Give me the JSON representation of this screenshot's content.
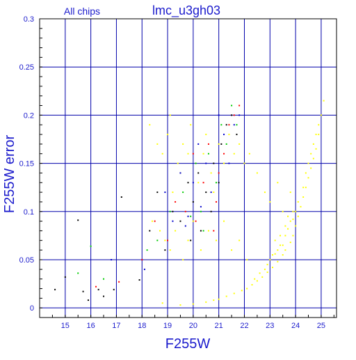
{
  "chart_data": {
    "type": "scatter",
    "title": "lmc_u3gh03",
    "subtitle": "All chips",
    "xlabel": "F255W",
    "ylabel": "F255W error",
    "xlim": [
      14.0,
      25.6
    ],
    "ylim": [
      -0.01,
      0.3
    ],
    "x_ticks": [
      15,
      16,
      17,
      18,
      19,
      20,
      21,
      22,
      23,
      24,
      25
    ],
    "y_ticks": [
      0,
      0.05,
      0.1,
      0.15,
      0.2,
      0.25,
      0.3
    ],
    "y_tick_labels": [
      "0",
      "0.05",
      "0.1",
      "0.15",
      "0.2",
      "0.25",
      "0.3"
    ],
    "grid": true,
    "colors": {
      "axis_text": "#1a1acc",
      "grid": "#0000aa",
      "frame": "#000000"
    },
    "series": [
      {
        "color": "#ffff00",
        "points": [
          [
            18.3,
            0.19
          ],
          [
            18.6,
            0.17
          ],
          [
            18.8,
            0.16
          ],
          [
            19.0,
            0.18
          ],
          [
            19.1,
            0.2
          ],
          [
            19.2,
            0.12
          ],
          [
            19.4,
            0.15
          ],
          [
            19.5,
            0.14
          ],
          [
            19.6,
            0.17
          ],
          [
            19.8,
            0.16
          ],
          [
            19.9,
            0.19
          ],
          [
            20.1,
            0.15
          ],
          [
            20.2,
            0.13
          ],
          [
            20.4,
            0.16
          ],
          [
            20.5,
            0.18
          ],
          [
            20.7,
            0.14
          ],
          [
            20.8,
            0.12
          ],
          [
            21.0,
            0.17
          ],
          [
            21.2,
            0.15
          ],
          [
            21.4,
            0.18
          ],
          [
            21.6,
            0.16
          ],
          [
            21.8,
            0.17
          ],
          [
            22.0,
            0.15
          ],
          [
            22.2,
            0.16
          ],
          [
            22.5,
            0.14
          ],
          [
            22.8,
            0.12
          ],
          [
            23.0,
            0.11
          ],
          [
            23.3,
            0.13
          ],
          [
            23.5,
            0.1
          ],
          [
            23.8,
            0.12
          ],
          [
            18.4,
            0.09
          ],
          [
            18.7,
            0.08
          ],
          [
            18.9,
            0.07
          ],
          [
            19.1,
            0.06
          ],
          [
            19.3,
            0.08
          ],
          [
            19.6,
            0.05
          ],
          [
            19.8,
            0.07
          ],
          [
            20.0,
            0.09
          ],
          [
            20.3,
            0.06
          ],
          [
            20.6,
            0.08
          ],
          [
            20.9,
            0.07
          ],
          [
            21.2,
            0.09
          ],
          [
            21.5,
            0.06
          ],
          [
            21.8,
            0.07
          ],
          [
            22.1,
            0.05
          ],
          [
            18.8,
            0.005
          ],
          [
            19.5,
            0.003
          ],
          [
            20.0,
            0.004
          ],
          [
            20.5,
            0.006
          ],
          [
            20.8,
            0.008
          ],
          [
            21.0,
            0.009
          ],
          [
            21.3,
            0.012
          ],
          [
            21.6,
            0.015
          ],
          [
            21.9,
            0.018
          ],
          [
            22.1,
            0.02
          ],
          [
            22.3,
            0.024
          ],
          [
            22.5,
            0.028
          ],
          [
            22.7,
            0.032
          ],
          [
            22.9,
            0.037
          ],
          [
            23.1,
            0.042
          ],
          [
            23.3,
            0.048
          ],
          [
            23.5,
            0.055
          ],
          [
            23.6,
            0.06
          ],
          [
            23.8,
            0.068
          ],
          [
            23.9,
            0.075
          ],
          [
            24.0,
            0.085
          ],
          [
            24.1,
            0.095
          ],
          [
            24.2,
            0.105
          ],
          [
            24.3,
            0.115
          ],
          [
            24.4,
            0.125
          ],
          [
            24.5,
            0.135
          ],
          [
            24.6,
            0.145
          ],
          [
            24.7,
            0.155
          ],
          [
            24.8,
            0.165
          ],
          [
            24.9,
            0.18
          ],
          [
            25.0,
            0.2
          ],
          [
            25.1,
            0.215
          ],
          [
            22.4,
            0.03
          ],
          [
            22.6,
            0.036
          ],
          [
            22.8,
            0.04
          ],
          [
            23.0,
            0.05
          ],
          [
            23.2,
            0.056
          ],
          [
            23.4,
            0.065
          ],
          [
            23.6,
            0.075
          ],
          [
            23.7,
            0.082
          ],
          [
            23.9,
            0.092
          ],
          [
            24.0,
            0.1
          ],
          [
            24.1,
            0.11
          ],
          [
            24.3,
            0.125
          ],
          [
            24.4,
            0.14
          ],
          [
            24.5,
            0.15
          ],
          [
            24.6,
            0.16
          ],
          [
            24.7,
            0.17
          ],
          [
            24.8,
            0.18
          ],
          [
            24.9,
            0.19
          ],
          [
            23.2,
            0.07
          ],
          [
            23.4,
            0.075
          ],
          [
            23.6,
            0.085
          ],
          [
            23.8,
            0.09
          ],
          [
            23.5,
            0.065
          ],
          [
            23.3,
            0.06
          ],
          [
            23.1,
            0.055
          ],
          [
            22.9,
            0.045
          ],
          [
            23.7,
            0.095
          ],
          [
            23.9,
            0.1
          ]
        ]
      },
      {
        "color": "#000000",
        "points": [
          [
            14.6,
            0.019
          ],
          [
            15.0,
            0.032
          ],
          [
            15.5,
            0.091
          ],
          [
            15.7,
            0.017
          ],
          [
            15.9,
            0.008
          ],
          [
            16.3,
            0.019
          ],
          [
            16.5,
            0.012
          ],
          [
            16.9,
            0.019
          ],
          [
            17.2,
            0.115
          ],
          [
            17.9,
            0.029
          ],
          [
            18.3,
            0.08
          ],
          [
            18.6,
            0.12
          ],
          [
            18.9,
            0.06
          ],
          [
            19.2,
            0.1
          ],
          [
            19.5,
            0.09
          ],
          [
            19.8,
            0.13
          ],
          [
            20.0,
            0.11
          ],
          [
            20.2,
            0.14
          ],
          [
            20.5,
            0.12
          ],
          [
            20.8,
            0.15
          ],
          [
            21.1,
            0.17
          ],
          [
            21.3,
            0.19
          ],
          [
            21.5,
            0.2
          ],
          [
            21.7,
            0.18
          ],
          [
            20.3,
            0.08
          ],
          [
            19.9,
            0.07
          ],
          [
            20.7,
            0.1
          ],
          [
            21.0,
            0.13
          ]
        ]
      },
      {
        "color": "#ff0000",
        "points": [
          [
            16.2,
            0.022
          ],
          [
            17.1,
            0.027
          ],
          [
            18.0,
            0.05
          ],
          [
            18.5,
            0.09
          ],
          [
            19.0,
            0.07
          ],
          [
            19.3,
            0.11
          ],
          [
            19.7,
            0.1
          ],
          [
            20.0,
            0.16
          ],
          [
            20.4,
            0.13
          ],
          [
            20.6,
            0.17
          ],
          [
            20.9,
            0.11
          ],
          [
            21.2,
            0.16
          ],
          [
            21.4,
            0.19
          ],
          [
            21.6,
            0.2
          ],
          [
            21.8,
            0.21
          ],
          [
            20.1,
            0.09
          ],
          [
            20.8,
            0.08
          ],
          [
            21.0,
            0.14
          ]
        ]
      },
      {
        "color": "#00cc00",
        "points": [
          [
            15.5,
            0.036
          ],
          [
            16.0,
            0.064
          ],
          [
            16.5,
            0.03
          ],
          [
            18.2,
            0.06
          ],
          [
            18.6,
            0.07
          ],
          [
            19.1,
            0.1
          ],
          [
            19.6,
            0.12
          ],
          [
            20.1,
            0.15
          ],
          [
            20.3,
            0.1
          ],
          [
            20.6,
            0.16
          ],
          [
            20.9,
            0.13
          ],
          [
            21.1,
            0.19
          ],
          [
            21.3,
            0.17
          ],
          [
            21.5,
            0.21
          ],
          [
            21.7,
            0.19
          ],
          [
            20.4,
            0.08
          ],
          [
            19.9,
            0.095
          ]
        ]
      },
      {
        "color": "#0000cc",
        "points": [
          [
            16.8,
            0.05
          ],
          [
            18.1,
            0.04
          ],
          [
            18.9,
            0.12
          ],
          [
            19.2,
            0.09
          ],
          [
            19.5,
            0.14
          ],
          [
            19.8,
            0.095
          ],
          [
            20.0,
            0.13
          ],
          [
            20.2,
            0.17
          ],
          [
            20.5,
            0.15
          ],
          [
            20.7,
            0.12
          ],
          [
            21.0,
            0.2
          ],
          [
            21.2,
            0.18
          ],
          [
            21.4,
            0.15
          ],
          [
            21.6,
            0.19
          ],
          [
            21.8,
            0.2
          ],
          [
            20.3,
            0.105
          ],
          [
            19.7,
            0.085
          ]
        ]
      }
    ]
  }
}
